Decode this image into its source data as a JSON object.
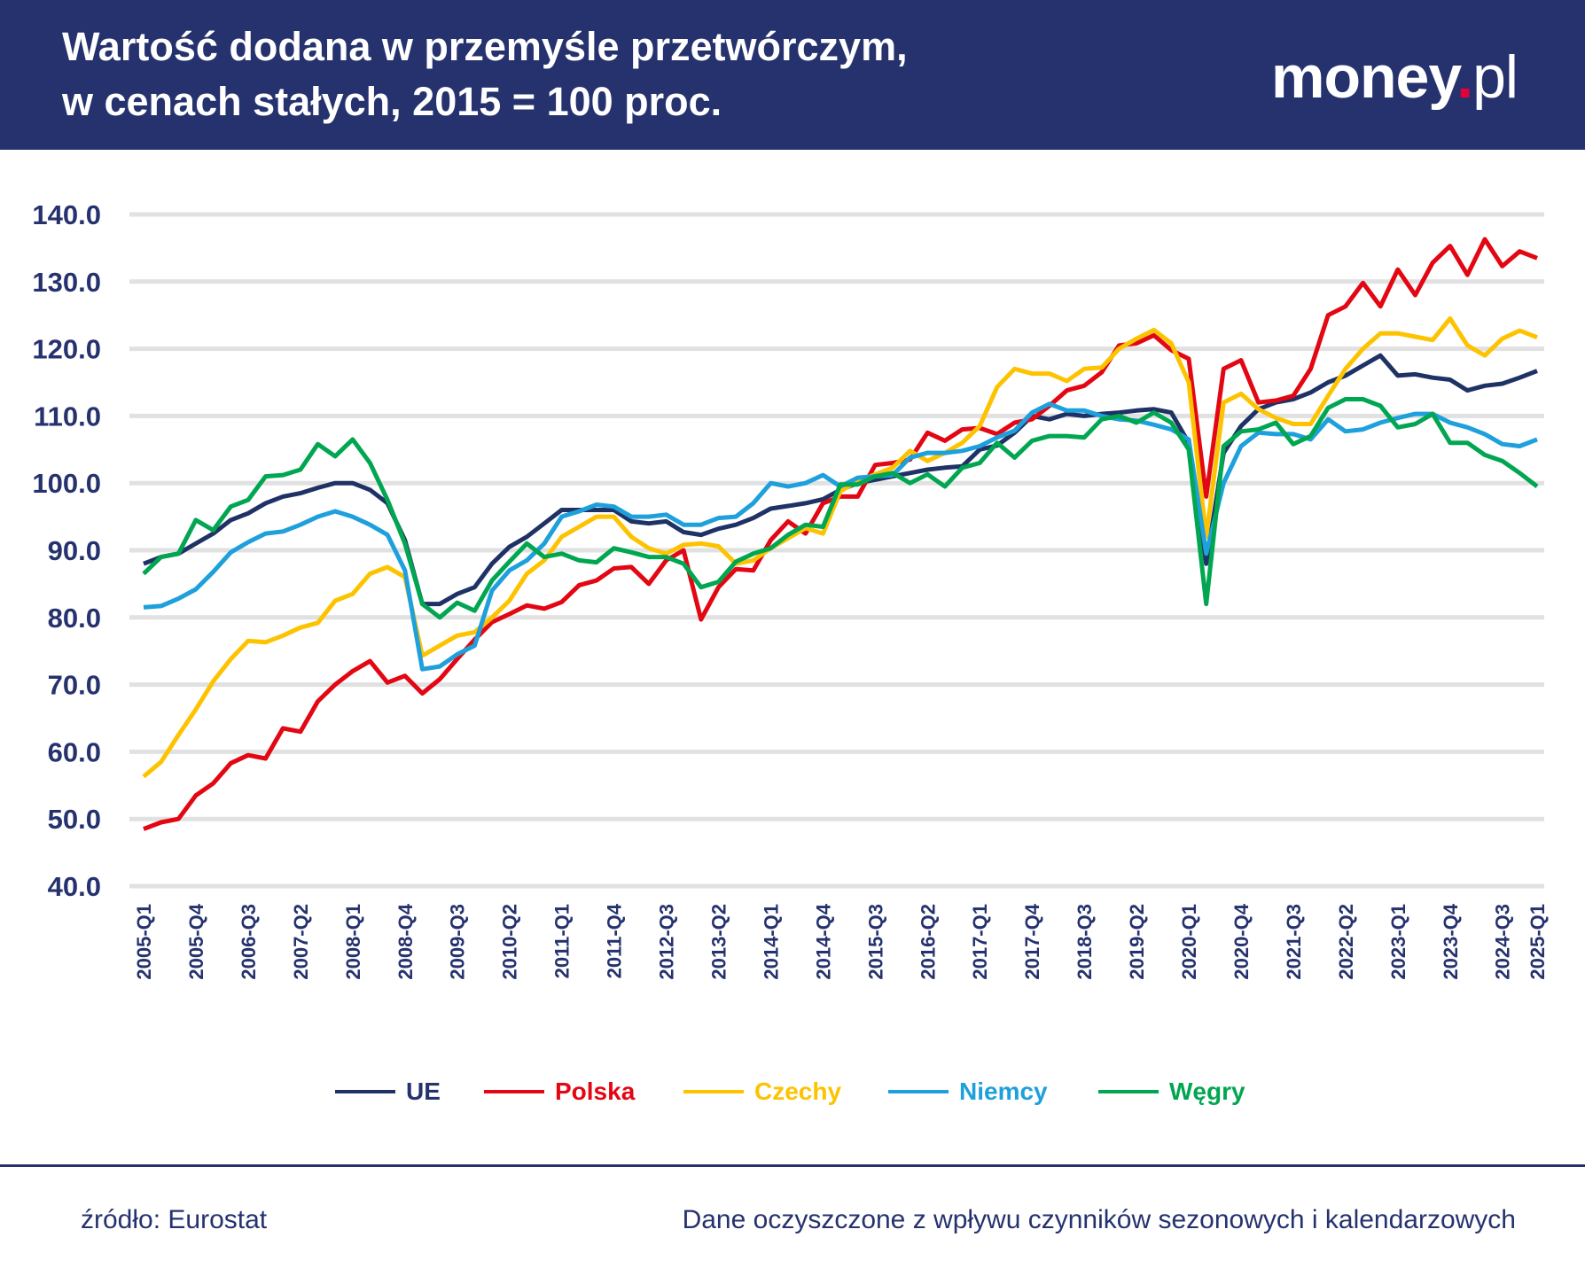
{
  "header": {
    "title_line1": "Wartość dodana w przemyśle przetwórczym,",
    "title_line2": "w cenach stałych, 2015 = 100 proc.",
    "logo": "money.pl"
  },
  "footer": {
    "source": "źródło: Eurostat",
    "note": "Dane oczyszczone z wpływu czynników sezonowych i kalendarzowych"
  },
  "chart_data": {
    "type": "line",
    "title": "Wartość dodana w przemyśle przetwórczym, w cenach stałych, 2015 = 100 proc.",
    "xlabel": "",
    "ylabel": "",
    "ylim": [
      40,
      140
    ],
    "yticks": [
      "40.0",
      "50.0",
      "60.0",
      "70.0",
      "80.0",
      "90.0",
      "100.0",
      "110.0",
      "120.0",
      "130.0",
      "140.0"
    ],
    "x_start": "2005-Q1",
    "x_end": "2025-Q1",
    "xtick_labels": [
      "2005-Q1",
      "2005-Q4",
      "2006-Q3",
      "2007-Q2",
      "2008-Q1",
      "2008-Q4",
      "2009-Q3",
      "2010-Q2",
      "2011-Q1",
      "2011-Q4",
      "2012-Q3",
      "2013-Q2",
      "2014-Q1",
      "2014-Q4",
      "2015-Q3",
      "2016-Q2",
      "2017-Q1",
      "2017-Q4",
      "2018-Q3",
      "2019-Q2",
      "2020-Q1",
      "2020-Q4",
      "2021-Q3",
      "2022-Q2",
      "2023-Q1",
      "2023-Q4",
      "2024-Q3",
      "2025-Q1"
    ],
    "grid": true,
    "legend_position": "bottom",
    "series": [
      {
        "name": "UE",
        "color": "#1f3266",
        "values": [
          88,
          89,
          89.5,
          91,
          92.5,
          94.5,
          95.5,
          97,
          98,
          98.5,
          99.3,
          100,
          100,
          99,
          97,
          91.5,
          82,
          82,
          83.5,
          84.5,
          88,
          90.5,
          92,
          94,
          96,
          96,
          96,
          96,
          94.3,
          94,
          94.3,
          92.7,
          92.3,
          93.2,
          93.8,
          94.8,
          96.2,
          96.6,
          97,
          97.6,
          99,
          100,
          100.5,
          101,
          101.5,
          102,
          102.3,
          102.5,
          105,
          105.6,
          107.5,
          110,
          109.5,
          110.3,
          110,
          110.3,
          110.5,
          110.8,
          111,
          110.5,
          106,
          88,
          104.5,
          108.5,
          111,
          112,
          112.5,
          113.5,
          115,
          116,
          117.5,
          119,
          116,
          116.2,
          115.7,
          115.4,
          113.8,
          114.5,
          114.8,
          115.7,
          116.7
        ]
      },
      {
        "name": "Polska",
        "color": "#e30613",
        "values": [
          48.5,
          49.5,
          50,
          53.5,
          55.3,
          58.3,
          59.5,
          59,
          63.5,
          63,
          67.5,
          70,
          72,
          73.5,
          70.3,
          71.3,
          68.7,
          70.8,
          73.8,
          76.7,
          79.3,
          80.5,
          81.8,
          81.3,
          82.3,
          84.8,
          85.5,
          87.3,
          87.5,
          85,
          88.5,
          90,
          79.7,
          84.5,
          87.2,
          87,
          91.5,
          94.3,
          92.5,
          97,
          98,
          98,
          102.7,
          103,
          103.5,
          107.5,
          106.3,
          108,
          108.2,
          107.3,
          109,
          109.5,
          111.5,
          113.8,
          114.5,
          116.5,
          120.5,
          120.8,
          122,
          119.8,
          118.5,
          98,
          117,
          118.3,
          112,
          112.3,
          113,
          117,
          125,
          126.3,
          129.8,
          126.3,
          131.8,
          128,
          132.8,
          135.3,
          131,
          136.3,
          132.3,
          134.5,
          133.5
        ]
      },
      {
        "name": "Czechy",
        "color": "#fdc300",
        "values": [
          56.3,
          58.5,
          62.5,
          66.3,
          70.5,
          73.8,
          76.5,
          76.3,
          77.3,
          78.5,
          79.2,
          82.5,
          83.5,
          86.5,
          87.5,
          86,
          74.3,
          75.8,
          77.3,
          77.8,
          80,
          82.5,
          86.5,
          88.5,
          92,
          93.5,
          95,
          95,
          92,
          90.3,
          89.5,
          90.8,
          91,
          90.6,
          88,
          88.5,
          90.3,
          91.8,
          93.3,
          92.5,
          98.8,
          100.3,
          101.3,
          102.3,
          104.8,
          103.3,
          104.5,
          106,
          108.5,
          114.3,
          117,
          116.3,
          116.3,
          115.2,
          117,
          117.2,
          120,
          121.5,
          122.8,
          120.8,
          115,
          92,
          112,
          113.3,
          111,
          109.7,
          108.8,
          108.8,
          113,
          117,
          120,
          122.3,
          122.3,
          121.8,
          121.3,
          124.5,
          120.5,
          119,
          121.5,
          122.7,
          121.7
        ]
      },
      {
        "name": "Niemcy",
        "color": "#1ea0dc",
        "values": [
          81.5,
          81.7,
          82.8,
          84.2,
          86.8,
          89.7,
          91.2,
          92.5,
          92.8,
          93.8,
          95,
          95.8,
          95,
          93.8,
          92.3,
          87,
          72.3,
          72.7,
          74.5,
          75.8,
          84,
          87,
          88.5,
          91,
          95,
          95.8,
          96.8,
          96.5,
          95,
          95,
          95.3,
          93.8,
          93.8,
          94.8,
          95,
          97,
          100,
          99.5,
          100,
          101.2,
          99.5,
          100.8,
          101,
          101.2,
          103.8,
          104.5,
          104.5,
          104.8,
          105.5,
          106.8,
          107.8,
          110.5,
          111.8,
          110.8,
          110.8,
          110,
          109.5,
          109.3,
          108.7,
          108,
          106.5,
          89.5,
          100,
          105.5,
          107.5,
          107.3,
          107.3,
          106.5,
          109.5,
          107.7,
          108,
          109,
          109.7,
          110.3,
          110.3,
          109,
          108.3,
          107.3,
          105.8,
          105.5,
          106.5
        ]
      },
      {
        "name": "Węgry",
        "color": "#00a650",
        "values": [
          86.5,
          89,
          89.5,
          94.5,
          93,
          96.5,
          97.5,
          101,
          101.2,
          102,
          105.8,
          104,
          106.5,
          103,
          97.5,
          91,
          82,
          80,
          82.2,
          81,
          85.5,
          88.3,
          91,
          89,
          89.5,
          88.5,
          88.2,
          90.3,
          89.7,
          89,
          89,
          88,
          84.5,
          85.3,
          88.3,
          89.5,
          90.3,
          92.3,
          93.8,
          93.5,
          99.8,
          99.8,
          101,
          101.5,
          100,
          101.3,
          99.5,
          102.3,
          103,
          106,
          103.8,
          106.3,
          107,
          107,
          106.8,
          109.5,
          110,
          109,
          110.5,
          109,
          105,
          82,
          105.5,
          107.7,
          108,
          109,
          105.8,
          107,
          111.2,
          112.5,
          112.5,
          111.5,
          108.3,
          108.8,
          110.3,
          106,
          106,
          104.2,
          103.3,
          101.5,
          99.5
        ]
      }
    ]
  }
}
